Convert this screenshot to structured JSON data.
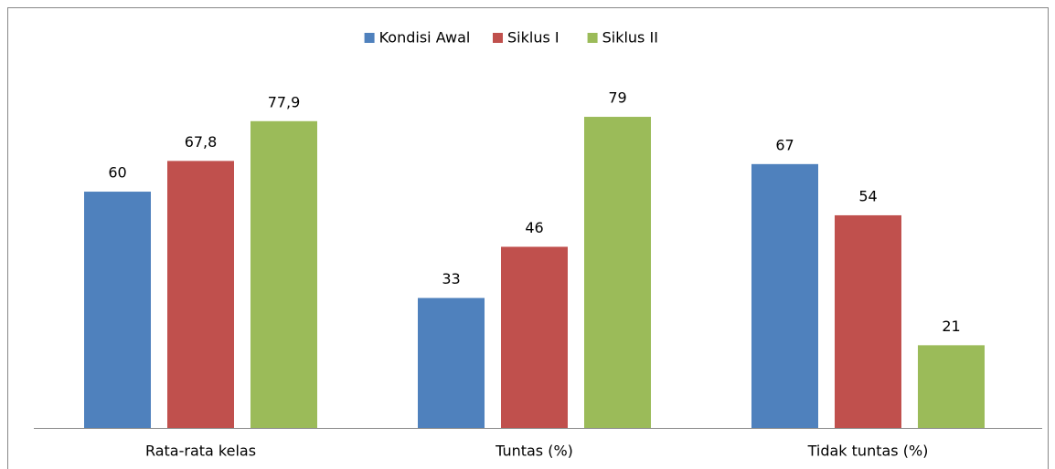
{
  "chart_data": {
    "type": "bar",
    "categories": [
      "Rata-rata kelas",
      "Tuntas (%)",
      "Tidak tuntas (%)"
    ],
    "series": [
      {
        "name": "Kondisi Awal",
        "color": "#4f81bd",
        "values": [
          60,
          33,
          67
        ],
        "value_labels": [
          "60",
          "33",
          "67"
        ]
      },
      {
        "name": "Siklus I",
        "color": "#c0504d",
        "values": [
          67.8,
          46,
          54
        ],
        "value_labels": [
          "67,8",
          "46",
          "54"
        ]
      },
      {
        "name": "Siklus II",
        "color": "#9bbb59",
        "values": [
          77.9,
          79,
          21
        ],
        "value_labels": [
          "77,9",
          "79",
          "21"
        ]
      }
    ],
    "legend": "top"
  }
}
